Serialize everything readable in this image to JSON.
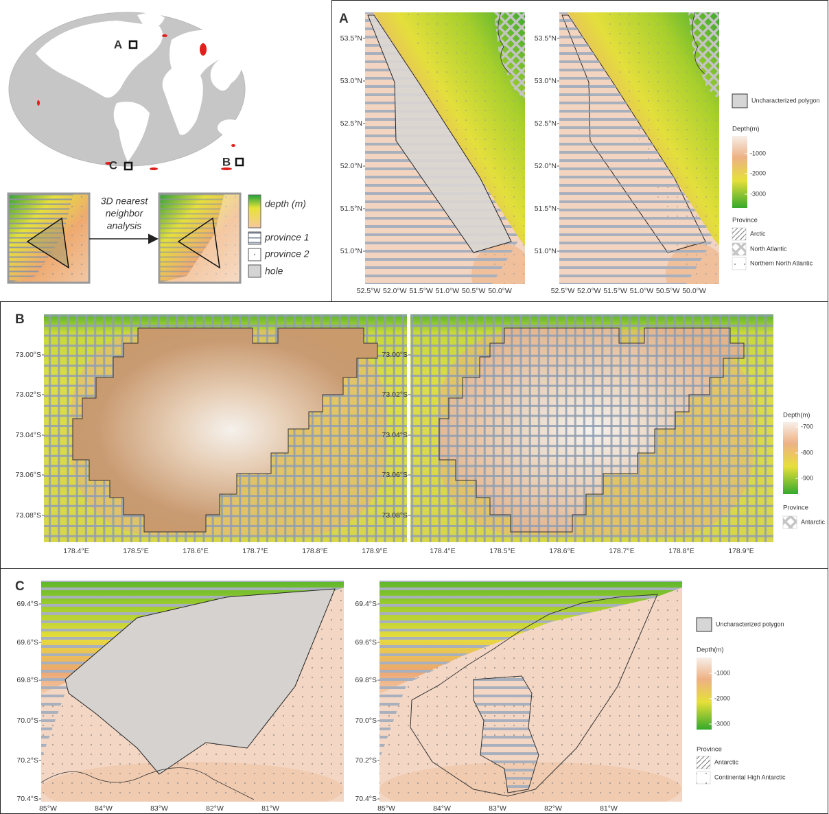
{
  "overview": {
    "site_labels": [
      "A",
      "C",
      "B"
    ],
    "method_label": [
      "3D nearest",
      "neighbor",
      "analysis"
    ],
    "legend": [
      "depth (m)",
      "province 1",
      "province 2",
      "hole"
    ]
  },
  "panels": [
    {
      "label": "A",
      "yticks": [
        "53.5°N",
        "53.0°N",
        "52.5°N",
        "52.0°N",
        "51.5°N",
        "51.0°N"
      ],
      "xticks": [
        "52.5°W",
        "52.0°W",
        "51.5°W",
        "51.0°W",
        "50.5°W",
        "50.0°W"
      ],
      "legend": {
        "hole": "Uncharacterized polygon",
        "depth_title": "Depth(m)",
        "depth_ticks": [
          -1000,
          -2000,
          -3000
        ],
        "province_title": "Province",
        "provinces": [
          "Arctic",
          "North Atlantic",
          "Northern North Atlantic"
        ]
      }
    },
    {
      "label": "B",
      "yticks": [
        "73.00°S",
        "73.02°S",
        "73.04°S",
        "73.06°S",
        "73.08°S"
      ],
      "xticks": [
        "178.4°E",
        "178.5°E",
        "178.6°E",
        "178.7°E",
        "178.8°E",
        "178.9°E"
      ],
      "legend": {
        "depth_title": "Depth(m)",
        "depth_ticks": [
          -700,
          -800,
          -900
        ],
        "province_title": "Province",
        "provinces": [
          "Antarctic"
        ]
      }
    },
    {
      "label": "C",
      "yticks": [
        "69.4°S",
        "69.6°S",
        "69.8°S",
        "70.0°S",
        "70.2°S",
        "70.4°S"
      ],
      "xticks": [
        "85°W",
        "84°W",
        "83°W",
        "82°W",
        "81°W"
      ],
      "legend": {
        "hole": "Uncharacterized polygon",
        "depth_title": "Depth(m)",
        "depth_ticks": [
          -1000,
          -2000,
          -3000
        ],
        "province_title": "Province",
        "provinces": [
          "Antarctic",
          "Continental High Antarctic"
        ]
      }
    }
  ]
}
